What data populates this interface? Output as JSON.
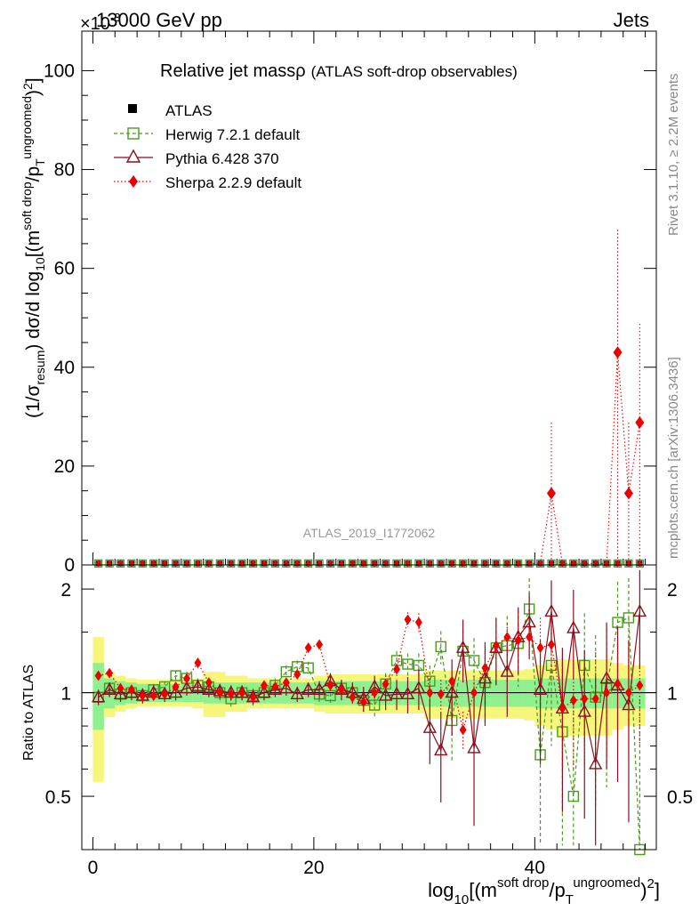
{
  "header": {
    "energy": "13000 GeV pp",
    "process": "Jets",
    "exponent": "×10",
    "exponent_power": "-3"
  },
  "side": {
    "rivet": "Rivet 3.1.10, ≥ 2.2M events",
    "mcplots": "mcplots.cern.ch [arXiv:1306.3436]"
  },
  "colors": {
    "atlas": "#000000",
    "herwig": "#4a9a1e",
    "pythia": "#8b0f1f",
    "sherpa": "#ee0000",
    "band_inner": "#8ef08e",
    "band_outer": "#f6f67a"
  },
  "chart_data": [
    {
      "type": "scatter",
      "title": "Relative jet massρ",
      "title_suffix": "(ATLAS soft-drop observables)",
      "analysis_label": "ATLAS_2019_I1772062",
      "ylabel": "(1/σ_resum) dσ/d log10[(m^soft drop/p_T^ungroomed)²]",
      "ylim": [
        0,
        108
      ],
      "yticks": [
        "0",
        "20",
        "40",
        "60",
        "80",
        "100"
      ],
      "legend": [
        "ATLAS",
        "Herwig 7.2.1 default",
        "Pythia 6.428 370",
        "Sherpa 2.2.9 default"
      ],
      "atlas_values": "≈0.3 in every bin",
      "sherpa_spikes": [
        {
          "bin": 41,
          "value": 14.5,
          "err_up": 28.8
        },
        {
          "bin": 47,
          "value": 43,
          "err_up": 67.8
        },
        {
          "bin": 48,
          "value": 14.5,
          "err_up": 28.8
        },
        {
          "bin": 49,
          "value": 28.8,
          "err_up": 48.8
        }
      ]
    },
    {
      "type": "scatter",
      "ylabel": "Ratio to ATLAS",
      "xlabel": "log10[(m^soft drop/p_T^ungroomed)²]",
      "xlim": [
        -1,
        51
      ],
      "ylim": [
        0.35,
        2.35
      ],
      "xticks": [
        "0",
        "20",
        "40"
      ],
      "yticks": [
        "0.5",
        "1",
        "2"
      ],
      "bins": [
        0,
        1,
        2,
        3,
        4,
        5,
        6,
        7,
        8,
        9,
        10,
        11,
        12,
        13,
        14,
        15,
        16,
        17,
        18,
        19,
        20,
        21,
        22,
        23,
        24,
        25,
        26,
        27,
        28,
        29,
        30,
        31,
        32,
        33,
        34,
        35,
        36,
        37,
        38,
        39,
        40,
        41,
        42,
        43,
        44,
        45,
        46,
        47,
        48,
        49
      ],
      "band_inner": [
        0.22,
        0.1,
        0.08,
        0.07,
        0.06,
        0.06,
        0.06,
        0.06,
        0.06,
        0.06,
        0.07,
        0.07,
        0.07,
        0.07,
        0.07,
        0.07,
        0.07,
        0.07,
        0.07,
        0.07,
        0.08,
        0.08,
        0.08,
        0.08,
        0.08,
        0.08,
        0.08,
        0.08,
        0.08,
        0.08,
        0.09,
        0.09,
        0.09,
        0.09,
        0.09,
        0.09,
        0.09,
        0.09,
        0.09,
        0.09,
        0.1,
        0.1,
        0.1,
        0.1,
        0.1,
        0.1,
        0.1,
        0.1,
        0.1,
        0.1
      ],
      "band_outer": [
        0.45,
        0.15,
        0.12,
        0.1,
        0.09,
        0.09,
        0.09,
        0.09,
        0.09,
        0.1,
        0.15,
        0.15,
        0.12,
        0.12,
        0.1,
        0.1,
        0.1,
        0.1,
        0.1,
        0.1,
        0.12,
        0.13,
        0.13,
        0.13,
        0.13,
        0.13,
        0.13,
        0.13,
        0.13,
        0.13,
        0.16,
        0.16,
        0.16,
        0.16,
        0.16,
        0.16,
        0.16,
        0.16,
        0.16,
        0.17,
        0.2,
        0.22,
        0.25,
        0.25,
        0.25,
        0.25,
        0.25,
        0.22,
        0.2,
        0.2
      ],
      "series": [
        {
          "name": "Herwig 7.2.1 default",
          "values": [
            0.97,
            1.03,
            0.99,
            1.0,
            0.98,
            1.02,
            1.04,
            1.12,
            1.1,
            1.05,
            1.04,
            1.0,
            0.96,
            1.0,
            0.98,
            1.0,
            1.05,
            1.15,
            1.19,
            1.18,
            0.99,
            0.98,
            1.03,
            1.0,
            0.95,
            0.92,
            1.06,
            1.24,
            1.21,
            1.2,
            1.08,
            1.36,
            0.83,
            1.32,
            1.24,
            1.07,
            1.35,
            1.37,
            1.39,
            1.75,
            0.66,
            1.2,
            0.77,
            0.5,
            1.2,
            0.97,
            1.03,
            1.6,
            1.65,
            0.35
          ],
          "errors": [
            0.04,
            0.04,
            0.04,
            0.04,
            0.04,
            0.04,
            0.04,
            0.04,
            0.05,
            0.05,
            0.05,
            0.05,
            0.05,
            0.05,
            0.05,
            0.05,
            0.05,
            0.05,
            0.05,
            0.05,
            0.05,
            0.06,
            0.06,
            0.06,
            0.07,
            0.07,
            0.08,
            0.08,
            0.09,
            0.1,
            0.12,
            0.15,
            0.2,
            0.2,
            0.2,
            0.25,
            0.3,
            0.3,
            0.35,
            0.4,
            0.45,
            0.5,
            0.5,
            0.5,
            0.5,
            0.5,
            0.5,
            0.5,
            0.5,
            0.6
          ]
        },
        {
          "name": "Pythia 6.428 370",
          "values": [
            0.97,
            1.02,
            0.99,
            1.0,
            0.98,
            1.0,
            0.99,
            1.0,
            1.03,
            1.04,
            1.02,
            1.01,
            1.0,
            1.0,
            0.97,
            1.0,
            1.02,
            1.03,
            0.99,
            1.02,
            1.02,
            1.08,
            1.02,
            1.0,
            0.96,
            1.04,
            0.98,
            0.99,
            0.99,
            1.03,
            0.79,
            0.68,
            1.0,
            1.35,
            0.69,
            1.1,
            1.35,
            1.15,
            1.45,
            1.6,
            1.02,
            1.72,
            0.9,
            1.54,
            0.88,
            0.62,
            1.1,
            1.05,
            0.92,
            1.72
          ],
          "errors": [
            0.05,
            0.05,
            0.05,
            0.05,
            0.05,
            0.05,
            0.05,
            0.05,
            0.05,
            0.05,
            0.05,
            0.05,
            0.05,
            0.05,
            0.05,
            0.05,
            0.05,
            0.05,
            0.05,
            0.05,
            0.06,
            0.06,
            0.07,
            0.07,
            0.08,
            0.08,
            0.09,
            0.1,
            0.12,
            0.14,
            0.17,
            0.2,
            0.25,
            0.28,
            0.28,
            0.3,
            0.3,
            0.3,
            0.32,
            0.35,
            0.4,
            0.4,
            0.45,
            0.45,
            0.45,
            0.5,
            0.5,
            0.5,
            0.5,
            0.55
          ]
        },
        {
          "name": "Sherpa 2.2.9 default",
          "values": [
            1.12,
            1.14,
            1.03,
            1.02,
            0.98,
            0.98,
            0.99,
            1.04,
            1.1,
            1.22,
            1.07,
            1.0,
            0.99,
            1.0,
            0.97,
            1.05,
            1.04,
            1.07,
            1.13,
            1.35,
            1.38,
            1.05,
            1.02,
            0.97,
            0.94,
            1.0,
            1.06,
            1.17,
            1.63,
            1.6,
            1.0,
            0.99,
            1.08,
            0.78,
            1.0,
            1.18,
            1.37,
            1.45,
            1.42,
            1.45,
            1.35,
            1.38,
            0.9,
            0.95,
            0.96,
            0.96,
            1.0,
            1.06,
            1.0,
            1.05
          ],
          "errors": [
            0.03,
            0.03,
            0.03,
            0.03,
            0.03,
            0.03,
            0.03,
            0.03,
            0.03,
            0.03,
            0.03,
            0.03,
            0.03,
            0.03,
            0.03,
            0.03,
            0.03,
            0.03,
            0.03,
            0.03,
            0.03,
            0.04,
            0.04,
            0.04,
            0.05,
            0.05,
            0.06,
            0.07,
            0.08,
            0.1,
            0.1,
            0.1,
            0.1,
            0.1,
            0.12,
            0.12,
            0.12,
            0.14,
            0.15,
            0.15,
            0.3,
            0.3,
            0.3,
            0.35,
            0.35,
            0.35,
            0.35,
            0.35,
            0.35,
            0.35
          ]
        }
      ]
    }
  ]
}
